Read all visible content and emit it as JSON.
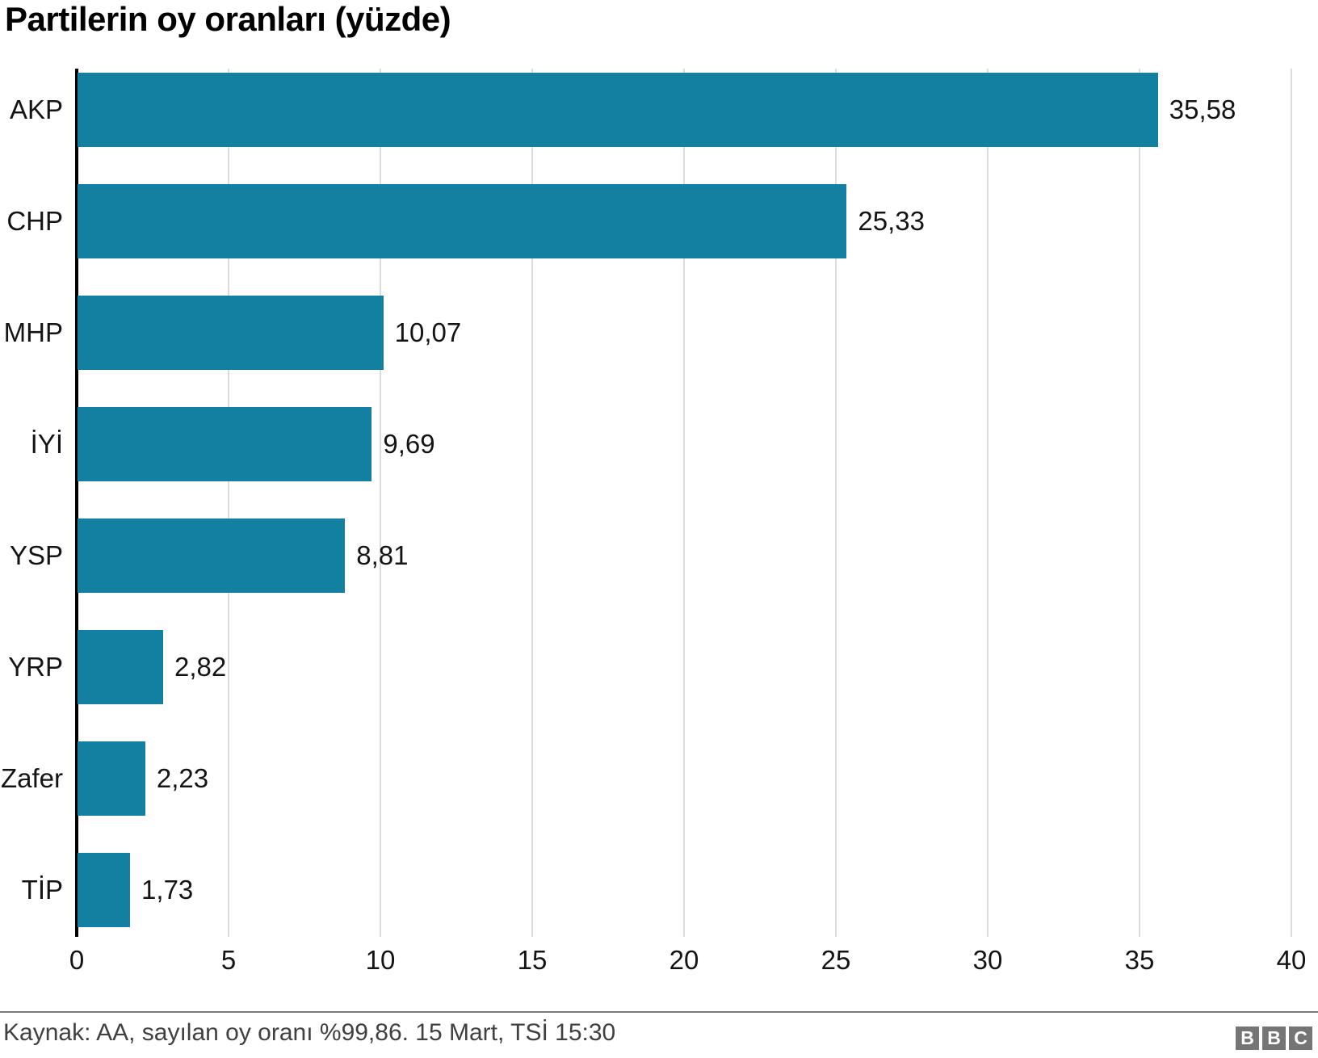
{
  "title": "Partilerin oy oranları (yüzde)",
  "chart_data": {
    "type": "bar",
    "orientation": "horizontal",
    "title": "Partilerin oy oranları (yüzde)",
    "categories": [
      "AKP",
      "CHP",
      "MHP",
      "İYİ",
      "YSP",
      "YRP",
      "Zafer",
      "TİP"
    ],
    "values": [
      35.58,
      25.33,
      10.07,
      9.69,
      8.81,
      2.82,
      2.23,
      1.73
    ],
    "value_labels": [
      "35,58",
      "25,33",
      "10,07",
      "9,69",
      "8,81",
      "2,82",
      "2,23",
      "1,73"
    ],
    "xlabel": "",
    "ylabel": "",
    "xlim": [
      0,
      40
    ],
    "x_ticks": [
      0,
      5,
      10,
      15,
      20,
      25,
      30,
      35,
      40
    ],
    "x_tick_labels": [
      "0",
      "5",
      "10",
      "15",
      "20",
      "25",
      "30",
      "35",
      "40"
    ],
    "grid": true,
    "legend": false,
    "bar_color": "#1380A1"
  },
  "colors": {
    "bar": "#1380A1",
    "gridline": "#dcdcdc",
    "axis": "#000000",
    "divider": "#7a7a7a",
    "source_text": "#404040",
    "logo_gray": "#757575"
  },
  "footer": {
    "source": "Kaynak: AA, sayılan oy oranı %99,86. 15 Mart, TSİ 15:30",
    "logo_name": "bbc-logo",
    "logo_letters": [
      "B",
      "B",
      "C"
    ]
  }
}
